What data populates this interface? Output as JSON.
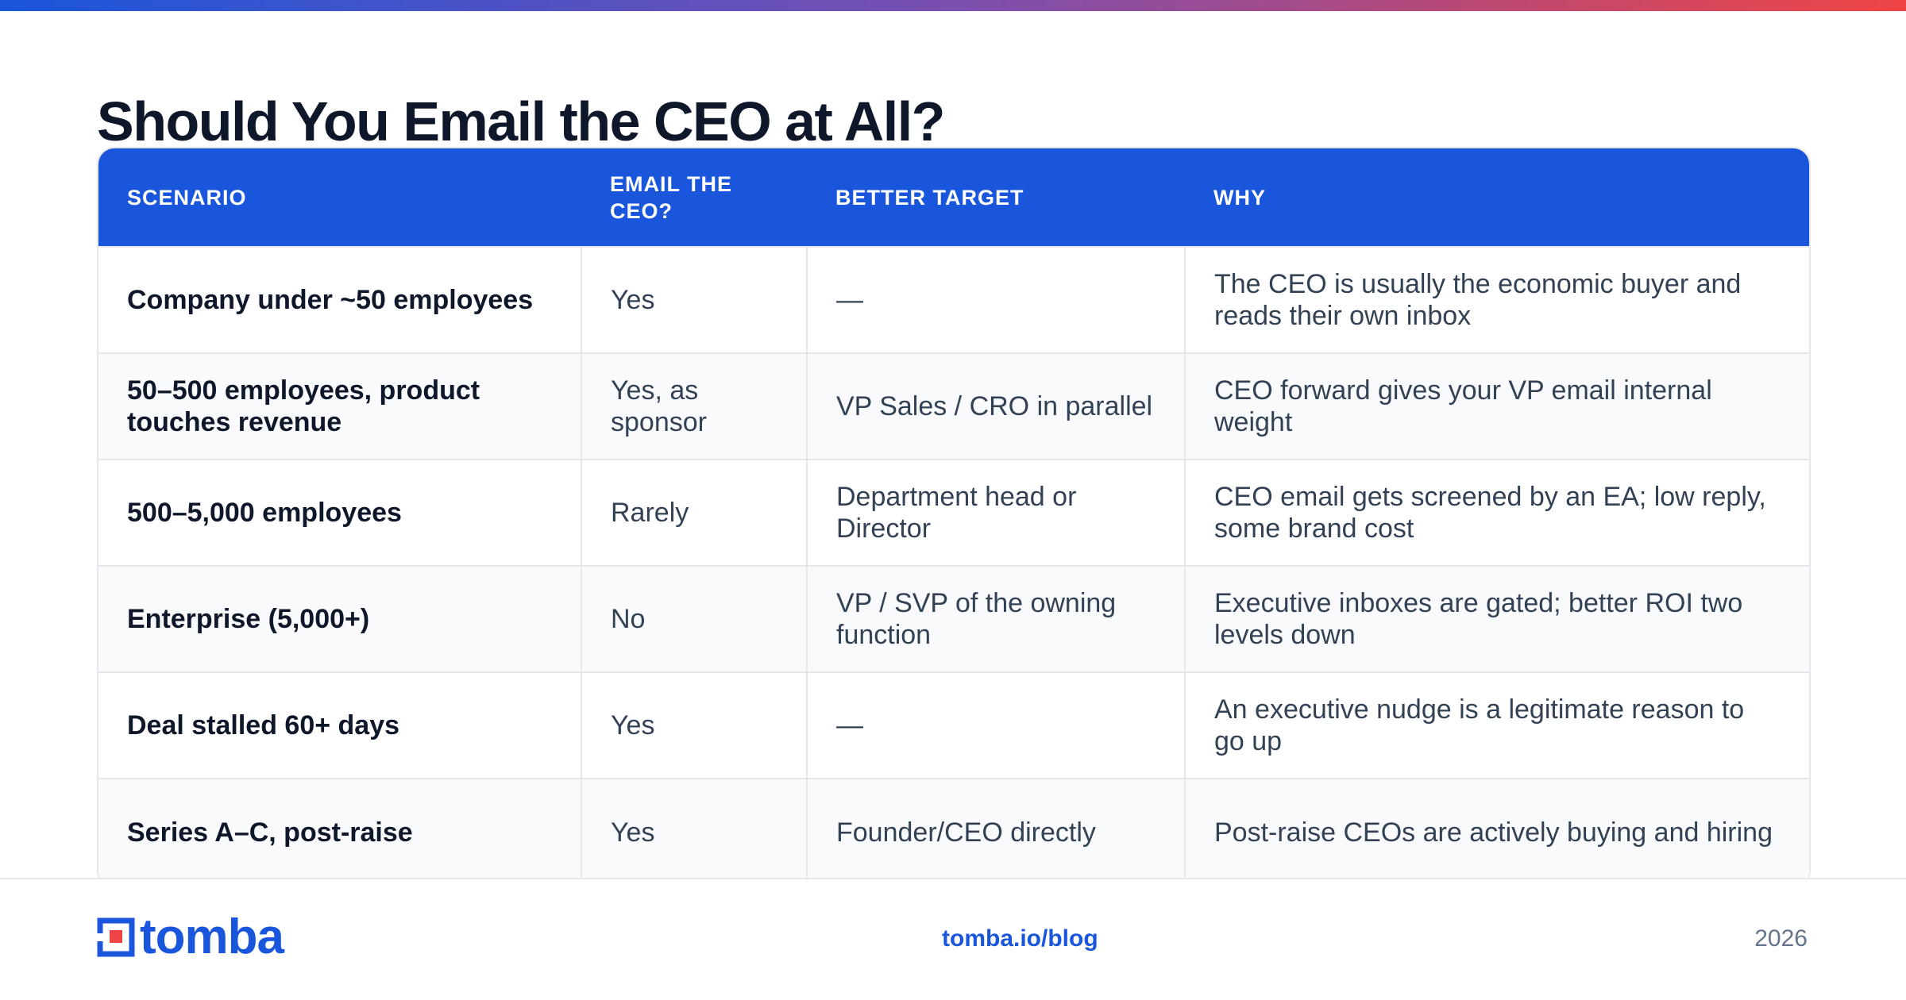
{
  "page": {
    "title": "Should You Email the CEO at All?"
  },
  "table": {
    "headers": [
      "SCENARIO",
      "EMAIL THE CEO?",
      "BETTER TARGET",
      "WHY"
    ],
    "rows": [
      [
        "Company under ~50 employees",
        "Yes",
        "—",
        "The CEO is usually the economic buyer and reads their own inbox"
      ],
      [
        "50–500 employees, product touches revenue",
        "Yes, as sponsor",
        "VP Sales / CRO in parallel",
        "CEO forward gives your VP email internal weight"
      ],
      [
        "500–5,000 employees",
        "Rarely",
        "Department head or Director",
        "CEO email gets screened by an EA; low reply, some brand cost"
      ],
      [
        "Enterprise (5,000+)",
        "No",
        "VP / SVP of the owning function",
        "Executive inboxes are gated; better ROI two levels down"
      ],
      [
        "Deal stalled 60+ days",
        "Yes",
        "—",
        "An executive nudge is a legitimate reason to go up"
      ],
      [
        "Series A–C, post-raise",
        "Yes",
        "Founder/CEO directly",
        "Post-raise CEOs are actively buying and hiring"
      ]
    ]
  },
  "footer": {
    "logo_text": "tomba",
    "link": "tomba.io/blog",
    "year": "2026"
  },
  "colors": {
    "accent": "#1a56db",
    "gradient_start": "#1a56db",
    "gradient_end": "#ef4444",
    "logo_red": "#ef4444"
  }
}
